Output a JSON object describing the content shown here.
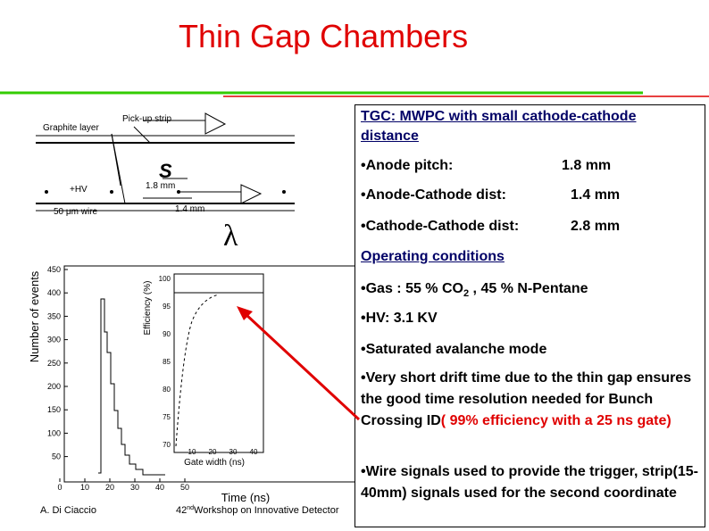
{
  "header": {
    "title": "Thin Gap Chambers"
  },
  "diagram": {
    "graphite_label": "Graphite layer",
    "strip_label": "Pick-up strip",
    "hv_label": "+HV",
    "pitch_label": "1.8 mm",
    "wire_label": "50 μm wire",
    "gap_label": "1.4 mm",
    "s_symbol": "S",
    "lambda_symbol": "λ"
  },
  "plot": {
    "y_label": "Number of events",
    "x_label": "Time (ns)",
    "yticks": [
      "450",
      "400",
      "350",
      "300",
      "250",
      "200",
      "150",
      "100",
      "50"
    ],
    "xticks": [
      "0",
      "10",
      "20",
      "30",
      "40",
      "50"
    ],
    "inset": {
      "y_label": "Efficiency (%)",
      "x_label": "Gate width (ns)",
      "yticks": [
        "100",
        "95",
        "90",
        "85",
        "80",
        "75",
        "70"
      ],
      "xticks": [
        "10",
        "20",
        "30",
        "40"
      ]
    }
  },
  "textbox": {
    "heading": "TGC: MWPC with small cathode-cathode  distance",
    "specs": [
      {
        "label": "•Anode pitch:",
        "value": "1.8  mm"
      },
      {
        "label": "•Anode-Cathode dist:",
        "value": "1.4  mm"
      },
      {
        "label": "•Cathode-Cathode dist:",
        "value": "2.8 mm"
      }
    ],
    "conditions_heading": "Operating conditions",
    "gas": [
      "•Gas : 55 % CO",
      "2",
      " , 45 % N-Pentane"
    ],
    "hv": "•HV: 3.1 KV",
    "mode": "•Saturated avalanche mode",
    "drift": [
      "•Very short drift time due to the thin gap ensures the good time resolution needed for Bunch Crossing ID",
      "( 99% efficiency with a 25 ns gate)"
    ],
    "wire": "•Wire signals used to provide the trigger, strip(15-40mm) signals used for the second coordinate"
  },
  "footer": {
    "author": "A. Di Ciaccio",
    "event": [
      "42",
      "nd",
      "Workshop on Innovative Detector"
    ]
  }
}
